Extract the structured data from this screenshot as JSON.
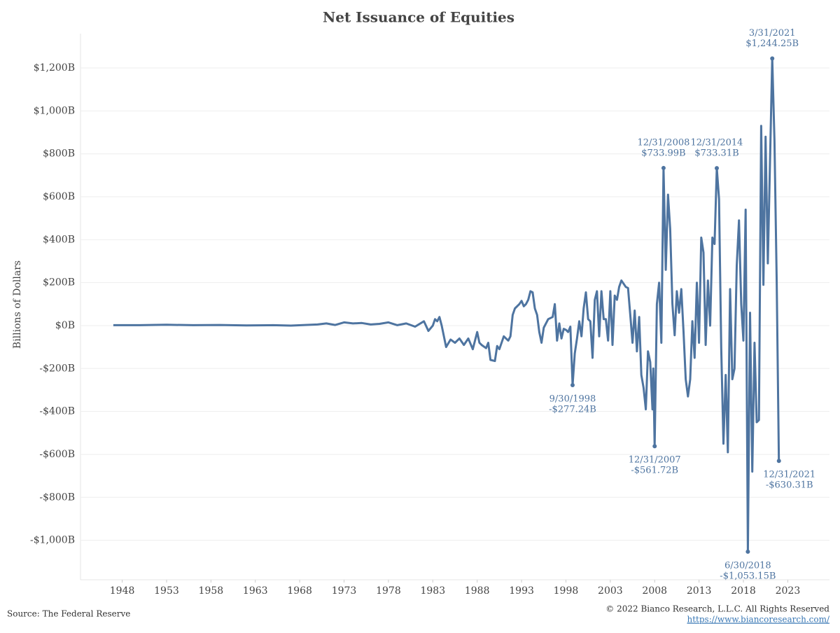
{
  "chart_data": {
    "type": "line",
    "title": "Net Issuance of Equities",
    "y_label": "Billions of Dollars",
    "source": "Source: The Federal Reserve",
    "copyright": "© 2022 Bianco Research, L.L.C. All Rights Reserved",
    "url": "https://www.biancoresearch.com/",
    "color": "#4e74a0",
    "grid": true,
    "xlim": [
      1943.3,
      2027.7
    ],
    "xticks": [
      1948,
      1953,
      1958,
      1963,
      1968,
      1973,
      1978,
      1983,
      1988,
      1993,
      1998,
      2003,
      2008,
      2013,
      2018,
      2023
    ],
    "ylim": [
      -1184,
      1360
    ],
    "yticks": [
      {
        "value": -1000,
        "label": "-$1,000B"
      },
      {
        "value": -800,
        "label": "-$800B"
      },
      {
        "value": -600,
        "label": "-$600B"
      },
      {
        "value": -400,
        "label": "-$400B"
      },
      {
        "value": -200,
        "label": "-$200B"
      },
      {
        "value": 0,
        "label": "$0B"
      },
      {
        "value": 200,
        "label": "$200B"
      },
      {
        "value": 400,
        "label": "$400B"
      },
      {
        "value": 600,
        "label": "$600B"
      },
      {
        "value": 800,
        "label": "$800B"
      },
      {
        "value": 1000,
        "label": "$1,000B"
      },
      {
        "value": 1200,
        "label": "$1,200B"
      }
    ],
    "x": [
      1947,
      1950,
      1953,
      1956,
      1959,
      1962,
      1965,
      1967,
      1970,
      1971,
      1972,
      1973,
      1974,
      1975,
      1976,
      1977,
      1978,
      1979,
      1980,
      1981,
      1982,
      1982.5,
      1983,
      1983.25,
      1983.5,
      1983.75,
      1984,
      1984.5,
      1985,
      1985.5,
      1986,
      1986.5,
      1987,
      1987.5,
      1988,
      1988.25,
      1988.5,
      1989,
      1989.25,
      1989.5,
      1990,
      1990.25,
      1990.5,
      1991,
      1991.25,
      1991.5,
      1991.75,
      1992,
      1992.25,
      1992.75,
      1993,
      1993.25,
      1993.5,
      1993.75,
      1994,
      1994.25,
      1994.5,
      1994.75,
      1995,
      1995.25,
      1995.5,
      1996,
      1996.5,
      1996.75,
      1997,
      1997.25,
      1997.5,
      1997.75,
      1998,
      1998.25,
      1998.5,
      1998.75,
      1999,
      1999.25,
      1999.5,
      1999.75,
      2000,
      2000.25,
      2000.5,
      2000.75,
      2001,
      2001.25,
      2001.5,
      2001.75,
      2002,
      2002.25,
      2002.5,
      2002.75,
      2003,
      2003.25,
      2003.5,
      2003.75,
      2004,
      2004.25,
      2004.5,
      2004.75,
      2005,
      2005.25,
      2005.5,
      2005.75,
      2006,
      2006.25,
      2006.5,
      2006.75,
      2007,
      2007.25,
      2007.5,
      2007.75,
      2007.85,
      2008,
      2008.25,
      2008.5,
      2008.75,
      2009,
      2009.25,
      2009.5,
      2009.75,
      2010,
      2010.25,
      2010.5,
      2010.75,
      2011,
      2011.25,
      2011.5,
      2011.75,
      2012,
      2012.25,
      2012.5,
      2012.75,
      2013,
      2013.25,
      2013.5,
      2013.75,
      2014,
      2014.25,
      2014.5,
      2014.75,
      2015,
      2015.25,
      2015.5,
      2015.75,
      2016,
      2016.25,
      2016.5,
      2016.75,
      2017,
      2017.25,
      2017.5,
      2017.75,
      2018,
      2018.25,
      2018.5,
      2018.75,
      2019,
      2019.25,
      2019.5,
      2019.75,
      2020,
      2020.25,
      2020.5,
      2020.75,
      2021.25,
      2021.5,
      2021.75,
      2022
    ],
    "values": [
      2,
      2,
      4,
      2,
      3,
      1,
      2,
      0,
      5,
      10,
      3,
      15,
      10,
      12,
      5,
      8,
      15,
      2,
      10,
      -5,
      20,
      -25,
      0,
      30,
      20,
      40,
      0,
      -100,
      -65,
      -80,
      -60,
      -90,
      -60,
      -110,
      -30,
      -80,
      -90,
      -105,
      -80,
      -160,
      -165,
      -95,
      -110,
      -50,
      -60,
      -70,
      -50,
      50,
      80,
      100,
      115,
      90,
      100,
      120,
      160,
      155,
      80,
      50,
      -30,
      -80,
      -10,
      30,
      40,
      100,
      -70,
      10,
      -60,
      -15,
      -20,
      -30,
      -5,
      -277.24,
      -130,
      -60,
      20,
      -50,
      80,
      155,
      30,
      20,
      -150,
      120,
      160,
      -50,
      160,
      30,
      30,
      -70,
      160,
      -90,
      140,
      120,
      180,
      210,
      195,
      180,
      175,
      50,
      -80,
      70,
      -120,
      40,
      -230,
      -290,
      -390,
      -120,
      -170,
      -390,
      -200,
      -561.72,
      100,
      200,
      -80,
      733.99,
      260,
      610,
      450,
      100,
      -45,
      160,
      60,
      170,
      -30,
      -250,
      -330,
      -250,
      20,
      -150,
      200,
      -80,
      410,
      340,
      -90,
      210,
      0,
      410,
      380,
      733.31,
      590,
      -100,
      -550,
      -230,
      -590,
      170,
      -250,
      -200,
      280,
      490,
      100,
      -70,
      540,
      -1053.15,
      60,
      -680,
      -80,
      -450,
      -440,
      930,
      190,
      880,
      290,
      1244.25,
      860,
      200,
      -630.31
    ],
    "annotations": [
      {
        "date": "9/30/1998",
        "label": "-$277.24B",
        "x": 1998.75,
        "y": -277.24
      },
      {
        "date": "12/31/2007",
        "label": "-$561.72B",
        "x": 2008,
        "y": -561.72
      },
      {
        "date": "12/31/2008",
        "label": "$733.99B",
        "x": 2009,
        "y": 733.99
      },
      {
        "date": "12/31/2014",
        "label": "$733.31B",
        "x": 2015,
        "y": 733.31
      },
      {
        "date": "6/30/2018",
        "label": "-$1,053.15B",
        "x": 2018.5,
        "y": -1053.15
      },
      {
        "date": "3/31/2021",
        "label": "$1,244.25B",
        "x": 2021.25,
        "y": 1244.25
      },
      {
        "date": "12/31/2021",
        "label": "-$630.31B",
        "x": 2022,
        "y": -630.31
      }
    ]
  }
}
